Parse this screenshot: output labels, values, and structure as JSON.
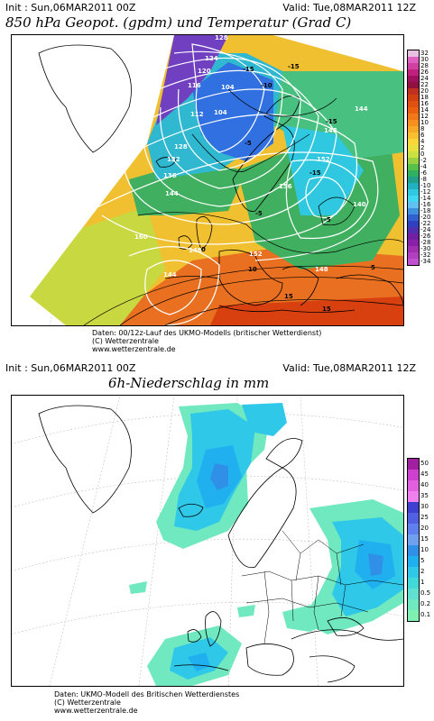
{
  "top": {
    "init": "Init : Sun,06MAR2011 00Z",
    "valid": "Valid: Tue,08MAR2011 12Z",
    "title": "850 hPa Geopot. (gpdm) und Temperatur (Grad C)",
    "credits": [
      "Daten: 00/12z-Lauf des UKMO-Modells (britischer Wetterdienst)",
      "(C) Wetterzentrale",
      "www.wetterzentrale.de"
    ],
    "legend": {
      "labels": [
        "32",
        "30",
        "28",
        "26",
        "24",
        "22",
        "20",
        "18",
        "16",
        "14",
        "12",
        "10",
        "8",
        "6",
        "4",
        "2",
        "0",
        "-2",
        "-4",
        "-6",
        "-8",
        "-10",
        "-12",
        "-14",
        "-16",
        "-18",
        "-20",
        "-22",
        "-24",
        "-26",
        "-28",
        "-30",
        "-32",
        "-34"
      ],
      "colors": [
        "#e8c0e0",
        "#e060c0",
        "#d040a0",
        "#c02080",
        "#a01060",
        "#901040",
        "#c03020",
        "#d04010",
        "#e05010",
        "#e86010",
        "#f07818",
        "#f89020",
        "#f8a828",
        "#f8c030",
        "#f8d838",
        "#e8e040",
        "#c8e040",
        "#98d040",
        "#58c048",
        "#30b060",
        "#20a088",
        "#20b0c0",
        "#30c8e0",
        "#40d8f0",
        "#60c0f0",
        "#4090e0",
        "#3060d0",
        "#3040c0",
        "#5030b0",
        "#7020a0",
        "#8820a8",
        "#a030b0",
        "#b040c0",
        "#c050d0"
      ]
    },
    "geopot_labels": [
      "128",
      "128",
      "124",
      "120",
      "116",
      "112",
      "108",
      "104",
      "104",
      "104",
      "100",
      "104",
      "108",
      "112",
      "116",
      "120",
      "124",
      "128",
      "132",
      "136",
      "140",
      "144",
      "144",
      "148",
      "148",
      "148",
      "152",
      "152",
      "156",
      "160",
      "144",
      "148",
      "136"
    ],
    "temp_labels": [
      "-15",
      "-15",
      "-15",
      "-10",
      "-10",
      "-5",
      "-5",
      "-5",
      "-15",
      "-15",
      "-10",
      "-5",
      "0",
      "5",
      "10",
      "15",
      "15",
      "5",
      "-5"
    ]
  },
  "bottom": {
    "init": "Init : Sun,06MAR2011 00Z",
    "valid": "Valid: Tue,08MAR2011 12Z",
    "title": "6h-Niederschlag in mm",
    "credits": [
      "Daten: UKMO-Modell des Britischen Wetterdienstes",
      "(C) Wetterzentrale",
      "www.wetterzentrale.de"
    ],
    "legend": {
      "labels": [
        "50",
        "45",
        "40",
        "35",
        "30",
        "25",
        "20",
        "15",
        "10",
        "5",
        "2",
        "1",
        "0.5",
        "0.2",
        "0.1"
      ],
      "colors": [
        "#a020a0",
        "#d040d0",
        "#e060e0",
        "#f080f0",
        "#4040d0",
        "#5060e0",
        "#6080f0",
        "#70a0f0",
        "#3090e8",
        "#20b0f0",
        "#30c8e8",
        "#40d8d8",
        "#60e0d0",
        "#70e8c0",
        "#80f0b0"
      ]
    }
  }
}
